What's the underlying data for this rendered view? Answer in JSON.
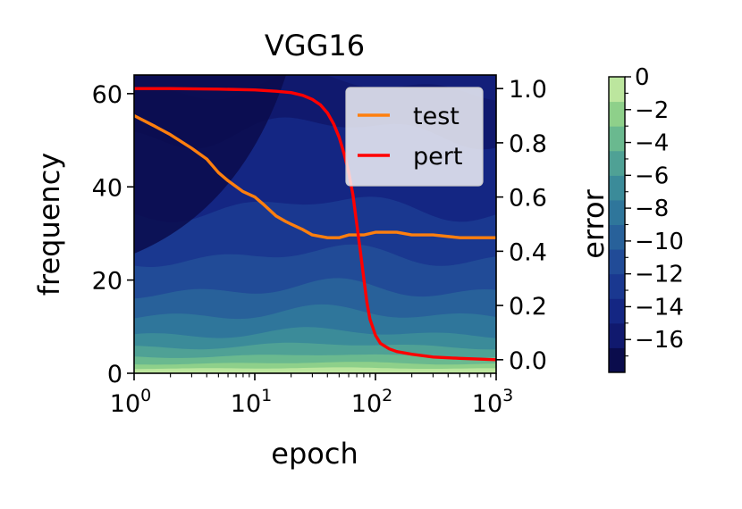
{
  "chart_data": {
    "type": "line",
    "title": "VGG16",
    "xlabel": "epoch",
    "ylabel_left": "frequency",
    "ylabel_right": "",
    "xscale": "log",
    "xlim": [
      1,
      1000
    ],
    "ylim_left": [
      0,
      64
    ],
    "ylim_right": [
      -0.05,
      1.05
    ],
    "x_ticks": [
      {
        "value": 1,
        "base": "10",
        "exp": "0"
      },
      {
        "value": 10,
        "base": "10",
        "exp": "1"
      },
      {
        "value": 100,
        "base": "10",
        "exp": "2"
      },
      {
        "value": 1000,
        "base": "10",
        "exp": "3"
      }
    ],
    "y_left_ticks": [
      {
        "value": 0,
        "label": "0"
      },
      {
        "value": 20,
        "label": "20"
      },
      {
        "value": 40,
        "label": "40"
      },
      {
        "value": 60,
        "label": "60"
      }
    ],
    "y_right_ticks": [
      {
        "value": 0.0,
        "label": "0.0"
      },
      {
        "value": 0.2,
        "label": "0.2"
      },
      {
        "value": 0.4,
        "label": "0.4"
      },
      {
        "value": 0.6,
        "label": "0.6"
      },
      {
        "value": 0.8,
        "label": "0.8"
      },
      {
        "value": 1.0,
        "label": "1.0"
      }
    ],
    "legend": {
      "placement": "top-right"
    },
    "series": [
      {
        "name": "test",
        "color": "#ff7f0e",
        "axis": "right",
        "x": [
          1,
          1.5,
          2,
          3,
          4,
          5,
          6,
          8,
          10,
          12,
          15,
          18,
          20,
          25,
          30,
          40,
          50,
          60,
          80,
          100,
          150,
          200,
          300,
          500,
          700,
          1000
        ],
        "y": [
          0.9,
          0.86,
          0.83,
          0.78,
          0.74,
          0.69,
          0.66,
          0.62,
          0.6,
          0.57,
          0.53,
          0.51,
          0.5,
          0.48,
          0.46,
          0.45,
          0.45,
          0.46,
          0.46,
          0.47,
          0.47,
          0.46,
          0.46,
          0.45,
          0.45,
          0.45
        ]
      },
      {
        "name": "pert",
        "color": "#ff0000",
        "axis": "right",
        "x": [
          1,
          2,
          5,
          10,
          15,
          20,
          25,
          30,
          35,
          40,
          45,
          50,
          55,
          60,
          65,
          70,
          75,
          80,
          85,
          90,
          100,
          110,
          130,
          150,
          200,
          300,
          500,
          1000
        ],
        "y": [
          1.0,
          1.0,
          0.998,
          0.995,
          0.99,
          0.985,
          0.975,
          0.96,
          0.94,
          0.91,
          0.87,
          0.82,
          0.76,
          0.69,
          0.61,
          0.5,
          0.4,
          0.3,
          0.21,
          0.15,
          0.09,
          0.06,
          0.04,
          0.03,
          0.02,
          0.01,
          0.005,
          0.0
        ]
      }
    ],
    "background": {
      "type": "contourf",
      "colormap": "viridis-blue",
      "colors": [
        "#0a0c4c",
        "#10196e",
        "#142683",
        "#1a3890",
        "#214b97",
        "#28619a",
        "#2f769b",
        "#3b8b99",
        "#4fa195",
        "#6ab98f",
        "#8ed08a",
        "#bce69e"
      ],
      "colorbar": {
        "label": "error",
        "range": [
          -18,
          0
        ],
        "ticks": [
          {
            "value": 0,
            "label": "0"
          },
          {
            "value": -2,
            "label": "−2"
          },
          {
            "value": -4,
            "label": "−4"
          },
          {
            "value": -6,
            "label": "−6"
          },
          {
            "value": -8,
            "label": "−8"
          },
          {
            "value": -10,
            "label": "−10"
          },
          {
            "value": -12,
            "label": "−12"
          },
          {
            "value": -14,
            "label": "−14"
          },
          {
            "value": -16,
            "label": "−16"
          }
        ]
      }
    }
  }
}
